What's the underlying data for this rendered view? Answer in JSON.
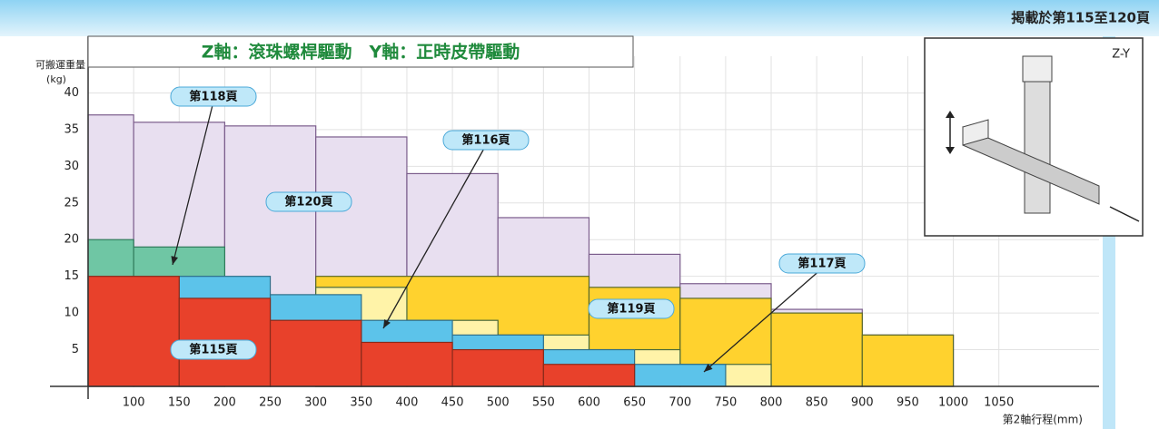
{
  "chart_data": {
    "type": "step-area",
    "title": "Z軸：滾珠螺桿驅動　Y軸：正時皮帶驅動",
    "page_note": "掲載於第115至120頁",
    "inset_label": "Z-Y",
    "y_label": "可搬運重量",
    "y_unit": "(kg)",
    "x_label": "第2軸行程(mm)",
    "xlim": [
      50,
      1160
    ],
    "ylim": [
      0,
      45
    ],
    "xticks": [
      100,
      150,
      200,
      250,
      300,
      350,
      400,
      450,
      500,
      550,
      600,
      650,
      700,
      750,
      800,
      850,
      900,
      950,
      1000,
      1050
    ],
    "yticks": [
      5,
      10,
      15,
      20,
      25,
      30,
      35,
      40
    ],
    "grid": true,
    "series": [
      {
        "name": "第120頁",
        "color": "#e8dff0",
        "edges": [
          50,
          100,
          200,
          300,
          400,
          500,
          600,
          700,
          800,
          900,
          1000
        ],
        "values": [
          37,
          36,
          35.5,
          34,
          29,
          23,
          18,
          14,
          10.5,
          7
        ]
      },
      {
        "name": "第118頁",
        "color": "#6fc6a4",
        "edges": [
          50,
          100,
          200
        ],
        "values": [
          20,
          19
        ]
      },
      {
        "name": "第119頁",
        "color": "#ffd22e",
        "edges": [
          300,
          600,
          700,
          800,
          900,
          1000
        ],
        "values": [
          15,
          13.5,
          12,
          10,
          7
        ]
      },
      {
        "name": "第117頁",
        "color": "#fff3a8",
        "edges": [
          300,
          400,
          500,
          600,
          700,
          800
        ],
        "values": [
          13.5,
          9,
          7,
          5,
          3
        ]
      },
      {
        "name": "第116頁",
        "color": "#5cc3ea",
        "edges": [
          150,
          250,
          350,
          450,
          550,
          650,
          750
        ],
        "values": [
          15,
          12.5,
          9,
          7,
          5,
          3
        ]
      },
      {
        "name": "第115頁",
        "color": "#e8412b",
        "edges": [
          50,
          150,
          250,
          350,
          450,
          550,
          650
        ],
        "values": [
          15,
          12,
          9,
          6,
          5,
          3
        ]
      }
    ]
  }
}
